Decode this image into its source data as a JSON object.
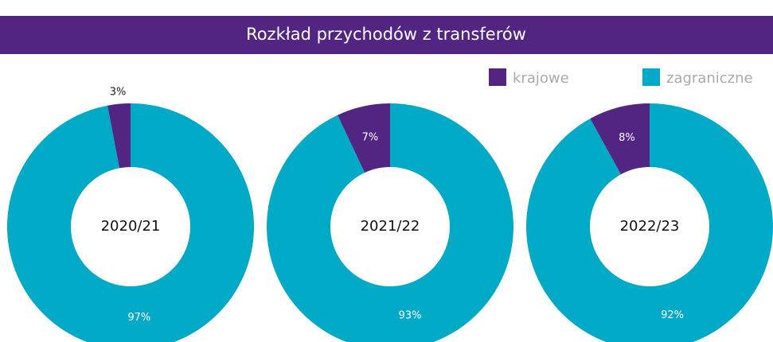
{
  "title": "Rozkład przychodów z transferów",
  "chart_data": [
    {
      "type": "pie",
      "center_label": "2020/21",
      "categories": [
        "krajowe",
        "zagraniczne"
      ],
      "values": [
        3,
        97
      ],
      "value_labels": [
        "3%",
        "97%"
      ],
      "colors": [
        "#522583",
        "#00a9c6"
      ]
    },
    {
      "type": "pie",
      "center_label": "2021/22",
      "categories": [
        "krajowe",
        "zagraniczne"
      ],
      "values": [
        7,
        93
      ],
      "value_labels": [
        "7%",
        "93%"
      ],
      "colors": [
        "#522583",
        "#00a9c6"
      ]
    },
    {
      "type": "pie",
      "center_label": "2022/23",
      "categories": [
        "krajowe",
        "zagraniczne"
      ],
      "values": [
        8,
        92
      ],
      "value_labels": [
        "8%",
        "92%"
      ],
      "colors": [
        "#522583",
        "#00a9c6"
      ]
    }
  ]
}
